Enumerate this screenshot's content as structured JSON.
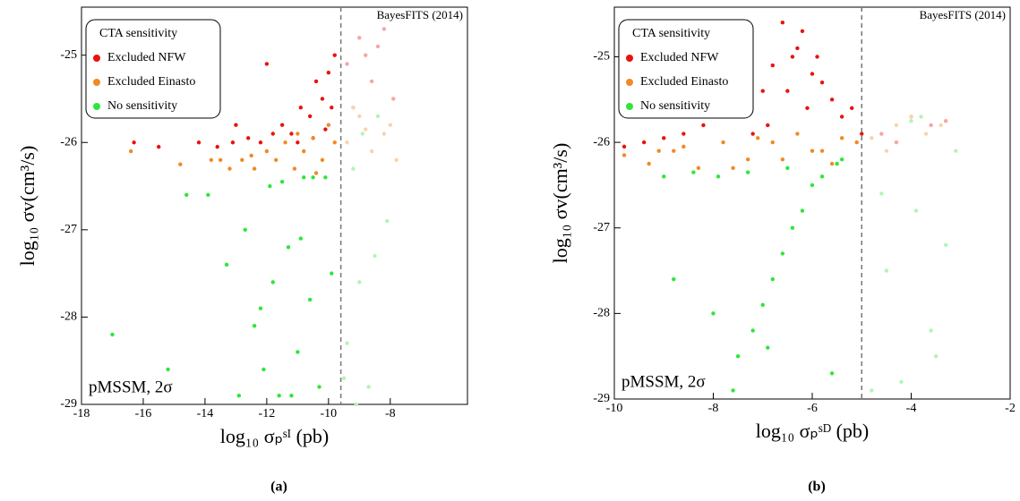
{
  "chart_data": [
    {
      "type": "scatter",
      "caption": "(a)",
      "xlabel": "log₁₀ σₚˢᴵ (pb)",
      "ylabel": "log₁₀ σv(cm³/s)",
      "annotations": [
        "BayesFITS (2014)",
        "pMSSM, 2σ"
      ],
      "legend_title": "CTA sensitivity",
      "legend": "upper left",
      "vline": -9.6,
      "xlim": [
        -18,
        -5.5
      ],
      "ylim": [
        -29,
        -24.45
      ],
      "xticks": [
        -18,
        -16,
        -14,
        -12,
        -10,
        -8
      ],
      "yticks": [
        -29,
        -28,
        -27,
        -26,
        -25
      ],
      "series": [
        {
          "name": "Excluded NFW",
          "color": "#e8130f",
          "x": [
            -16.3,
            -15.5,
            -14.2,
            -13.6,
            -13.1,
            -12.6,
            -12.2,
            -11.8,
            -11.5,
            -11.2,
            -10.9,
            -10.6,
            -10.4,
            -10.2,
            -10.0,
            -9.9,
            -9.8,
            -11.0,
            -10.5,
            -10.1,
            -12.0,
            -13.0,
            -9.4,
            -9.0,
            -8.6,
            -8.2,
            -7.9,
            -9.2,
            -8.8,
            -8.4
          ],
          "values": [
            -26.0,
            -26.05,
            -26.0,
            -26.05,
            -26.0,
            -25.95,
            -26.0,
            -25.9,
            -25.8,
            -25.9,
            -25.6,
            -25.7,
            -25.3,
            -25.5,
            -25.2,
            -25.6,
            -25.0,
            -26.0,
            -25.95,
            -25.85,
            -25.1,
            -25.8,
            -25.1,
            -24.8,
            -25.3,
            -24.7,
            -25.5,
            -25.6,
            -25.0,
            -24.9
          ]
        },
        {
          "name": "Excluded Einasto",
          "color": "#f08a24",
          "x": [
            -16.4,
            -14.8,
            -13.8,
            -13.2,
            -12.8,
            -12.4,
            -12.0,
            -11.7,
            -11.4,
            -11.1,
            -10.8,
            -10.5,
            -10.2,
            -10.0,
            -9.8,
            -12.5,
            -11.0,
            -10.4,
            -13.5,
            -9.4,
            -9.0,
            -8.6,
            -8.2,
            -7.8,
            -9.2,
            -8.8,
            -8.0
          ],
          "values": [
            -26.1,
            -26.25,
            -26.2,
            -26.3,
            -26.2,
            -26.3,
            -26.1,
            -26.2,
            -26.0,
            -26.3,
            -26.1,
            -25.95,
            -26.2,
            -25.8,
            -26.0,
            -26.15,
            -25.9,
            -26.35,
            -26.2,
            -26.0,
            -25.7,
            -26.1,
            -25.9,
            -26.2,
            -25.6,
            -25.85,
            -25.8
          ]
        },
        {
          "name": "No sensitivity",
          "color": "#2ee63a",
          "x": [
            -14.6,
            -13.9,
            -13.3,
            -12.7,
            -12.4,
            -12.1,
            -11.8,
            -11.6,
            -11.3,
            -11.0,
            -10.8,
            -10.6,
            -10.3,
            -10.1,
            -9.9,
            -17.0,
            -15.2,
            -12.9,
            -11.5,
            -11.2,
            -10.9,
            -10.5,
            -12.2,
            -11.9,
            -9.4,
            -9.2,
            -9.0,
            -8.7,
            -8.4,
            -8.1,
            -9.5,
            -8.9,
            -8.5,
            -9.1
          ],
          "values": [
            -26.6,
            -26.6,
            -27.4,
            -27.0,
            -28.1,
            -28.6,
            -27.6,
            -28.9,
            -27.2,
            -28.4,
            -26.4,
            -27.8,
            -28.8,
            -26.4,
            -27.5,
            -28.2,
            -28.6,
            -28.9,
            -26.45,
            -28.9,
            -27.1,
            -26.4,
            -27.9,
            -26.5,
            -28.3,
            -26.3,
            -27.6,
            -28.8,
            -25.7,
            -26.9,
            -28.7,
            -25.9,
            -27.3,
            -29.0
          ]
        }
      ]
    },
    {
      "type": "scatter",
      "caption": "(b)",
      "xlabel": "log₁₀ σₚˢᴰ (pb)",
      "ylabel": "log₁₀ σv(cm³/s)",
      "annotations": [
        "BayesFITS (2014)",
        "pMSSM, 2σ"
      ],
      "legend_title": "CTA sensitivity",
      "legend": "upper left",
      "vline": -5,
      "xlim": [
        -10,
        -2
      ],
      "ylim": [
        -29,
        -24.42
      ],
      "xticks": [
        -10,
        -8,
        -6,
        -4,
        -2
      ],
      "yticks": [
        -29,
        -28,
        -27,
        -26,
        -25
      ],
      "series": [
        {
          "name": "Excluded NFW",
          "color": "#e8130f",
          "x": [
            -9.8,
            -9.4,
            -9.0,
            -8.6,
            -8.2,
            -7.8,
            -7.4,
            -7.0,
            -6.8,
            -6.6,
            -6.4,
            -6.2,
            -6.0,
            -5.8,
            -5.6,
            -5.4,
            -5.2,
            -6.9,
            -6.5,
            -6.3,
            -6.1,
            -7.2,
            -5.9,
            -4.6,
            -4.0,
            -3.6,
            -3.3,
            -4.3,
            -5.0
          ],
          "values": [
            -26.05,
            -26.0,
            -25.95,
            -25.9,
            -25.8,
            -25.7,
            -25.6,
            -25.4,
            -25.1,
            -24.6,
            -25.0,
            -24.7,
            -25.2,
            -25.3,
            -25.5,
            -25.7,
            -25.6,
            -25.8,
            -25.4,
            -24.9,
            -25.6,
            -25.9,
            -25.0,
            -25.9,
            -25.7,
            -25.8,
            -25.75,
            -26.0,
            -25.9
          ]
        },
        {
          "name": "Excluded Einasto",
          "color": "#f08a24",
          "x": [
            -9.8,
            -9.3,
            -8.8,
            -8.3,
            -7.8,
            -7.3,
            -6.8,
            -6.3,
            -5.8,
            -5.4,
            -5.1,
            -8.6,
            -7.6,
            -6.6,
            -5.6,
            -9.1,
            -7.1,
            -6.0,
            -4.8,
            -4.3,
            -4.0,
            -3.7,
            -3.4,
            -4.5
          ],
          "values": [
            -26.15,
            -26.25,
            -26.1,
            -26.3,
            -26.0,
            -26.2,
            -26.0,
            -25.9,
            -26.1,
            -25.95,
            -26.0,
            -26.05,
            -26.3,
            -26.2,
            -26.25,
            -26.1,
            -25.95,
            -26.1,
            -25.95,
            -25.8,
            -25.7,
            -25.9,
            -25.8,
            -26.1
          ]
        },
        {
          "name": "No sensitivity",
          "color": "#2ee63a",
          "x": [
            -9.0,
            -8.4,
            -7.9,
            -7.5,
            -7.2,
            -7.0,
            -6.8,
            -6.6,
            -6.4,
            -6.2,
            -6.0,
            -5.8,
            -5.6,
            -5.4,
            -8.8,
            -8.0,
            -7.6,
            -7.3,
            -6.9,
            -6.5,
            -5.5,
            -4.8,
            -4.5,
            -4.2,
            -3.9,
            -3.6,
            -3.3,
            -3.1,
            -4.0,
            -3.5,
            -4.6,
            -3.8
          ],
          "values": [
            -26.4,
            -26.35,
            -26.4,
            -28.5,
            -28.2,
            -27.9,
            -27.6,
            -27.3,
            -27.0,
            -26.8,
            -26.5,
            -26.4,
            -28.7,
            -26.2,
            -27.6,
            -28.0,
            -28.9,
            -26.35,
            -28.4,
            -26.3,
            -26.25,
            -28.9,
            -27.5,
            -28.8,
            -26.8,
            -28.2,
            -27.2,
            -26.1,
            -25.75,
            -28.5,
            -26.6,
            -25.7
          ]
        }
      ]
    }
  ]
}
